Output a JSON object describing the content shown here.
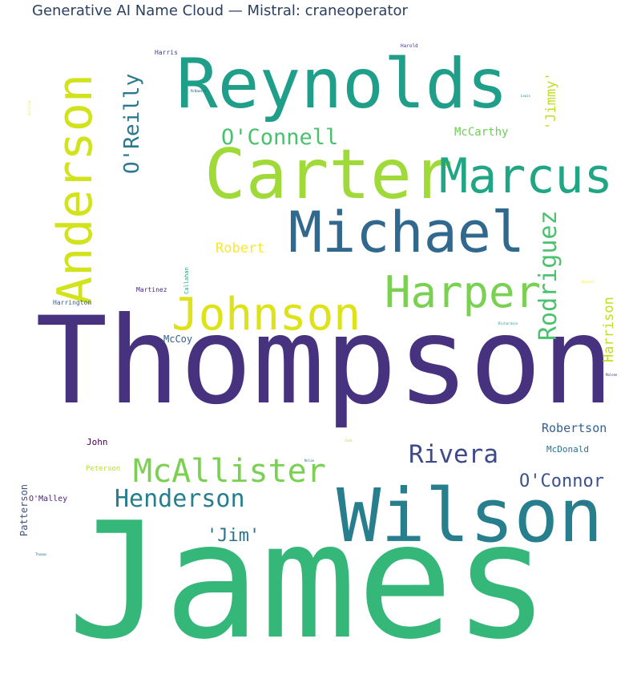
{
  "chart_data": {
    "type": "wordcloud",
    "title": "Generative AI Name Cloud — Mistral: craneoperator",
    "words": [
      {
        "text": "James",
        "weight": 100,
        "color": "#35b779"
      },
      {
        "text": "Thompson",
        "weight": 92,
        "color": "#46327e"
      },
      {
        "text": "Wilson",
        "weight": 55,
        "color": "#277f8e"
      },
      {
        "text": "Reynolds",
        "weight": 52,
        "color": "#1f9e89"
      },
      {
        "text": "Carter",
        "weight": 52,
        "color": "#a0da39"
      },
      {
        "text": "Michael",
        "weight": 42,
        "color": "#31688e"
      },
      {
        "text": "Anderson",
        "weight": 40,
        "color": "#d2e21b"
      },
      {
        "text": "Marcus",
        "weight": 36,
        "color": "#21a685"
      },
      {
        "text": "Johnson",
        "weight": 34,
        "color": "#dde318"
      },
      {
        "text": "Harper",
        "weight": 32,
        "color": "#7ad151"
      },
      {
        "text": "McAllister",
        "weight": 24,
        "color": "#7ad151"
      },
      {
        "text": "Henderson",
        "weight": 18,
        "color": "#277f8e"
      },
      {
        "text": "Rivera",
        "weight": 18,
        "color": "#3e4a89"
      },
      {
        "text": "Rodriguez",
        "weight": 17,
        "color": "#4ac16d"
      },
      {
        "text": "O'Reilly",
        "weight": 16,
        "color": "#2a788e"
      },
      {
        "text": "O'Connell",
        "weight": 16,
        "color": "#4ac16d"
      },
      {
        "text": "O'Connor",
        "weight": 14,
        "color": "#3b528b"
      },
      {
        "text": "'Jim'",
        "weight": 14,
        "color": "#2c728e"
      },
      {
        "text": "'Jimmy'",
        "weight": 10,
        "color": "#bddf26"
      },
      {
        "text": "Harrison",
        "weight": 10,
        "color": "#c2df23"
      },
      {
        "text": "Robert",
        "weight": 10,
        "color": "#fde725"
      },
      {
        "text": "Robertson",
        "weight": 9,
        "color": "#355f8d"
      },
      {
        "text": "McCarthy",
        "weight": 8,
        "color": "#6ece58"
      },
      {
        "text": "Patterson",
        "weight": 7,
        "color": "#3b528b"
      },
      {
        "text": "McCoy",
        "weight": 7,
        "color": "#33638d"
      },
      {
        "text": "McDonald",
        "weight": 6,
        "color": "#2c728e"
      },
      {
        "text": "John",
        "weight": 6,
        "color": "#440154"
      },
      {
        "text": "O'Malley",
        "weight": 6,
        "color": "#482475"
      },
      {
        "text": "Peterson",
        "weight": 5,
        "color": "#b5de2b"
      },
      {
        "text": "Harrington",
        "weight": 4,
        "color": "#355f8d"
      },
      {
        "text": "Martinez",
        "weight": 4,
        "color": "#482878"
      },
      {
        "text": "Callahan",
        "weight": 4,
        "color": "#22a884"
      },
      {
        "text": "Harris",
        "weight": 4,
        "color": "#404688"
      },
      {
        "text": "Harold",
        "weight": 3,
        "color": "#443983"
      },
      {
        "text": "Richardson",
        "weight": 2,
        "color": "#1fa088"
      },
      {
        "text": "Nolan",
        "weight": 2,
        "color": "#2d708e"
      },
      {
        "text": "Malone",
        "weight": 2,
        "color": "#481f70"
      },
      {
        "text": "Russell",
        "weight": 2,
        "color": "#fde725"
      },
      {
        "text": "McNamara",
        "weight": 2,
        "color": "#31688e"
      },
      {
        "text": "Jack",
        "weight": 2,
        "color": "#b8de29"
      },
      {
        "text": "Lewis",
        "weight": 2,
        "color": "#21918c"
      },
      {
        "text": "Kelly",
        "weight": 2,
        "color": "#3e4989"
      },
      {
        "text": "Thomas",
        "weight": 2,
        "color": "#2a788e"
      },
      {
        "text": "Sullivan",
        "weight": 2,
        "color": "#fde725"
      }
    ]
  }
}
